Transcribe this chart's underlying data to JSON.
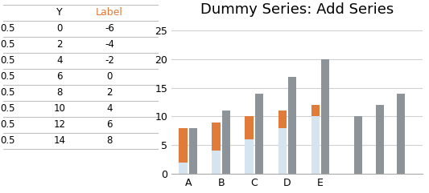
{
  "title": "Dummy Series: Add Series",
  "categories": [
    "A",
    "B",
    "C",
    "D",
    "E"
  ],
  "blue_base": [
    2,
    4,
    6,
    8,
    10
  ],
  "orange_top": [
    6,
    5,
    4,
    3,
    2
  ],
  "gray_bars": [
    8,
    11,
    14,
    17,
    20
  ],
  "extra_gray": [
    10,
    12,
    14
  ],
  "blue_color": "#d6e4f0",
  "orange_color": "#e07b39",
  "gray_color": "#8d9499",
  "ylim": [
    0,
    27
  ],
  "yticks": [
    0,
    5,
    10,
    15,
    20,
    25
  ],
  "title_fontsize": 13,
  "bar_width": 0.25,
  "table_col1_header": "Y",
  "table_col2_header": "Label",
  "table_x_vals": [
    0.5,
    0.5,
    0.5,
    0.5,
    0.5,
    0.5,
    0.5,
    0.5
  ],
  "table_y_vals": [
    0,
    2,
    4,
    6,
    8,
    10,
    12,
    14
  ],
  "table_label_vals": [
    -6,
    -4,
    -2,
    0,
    2,
    4,
    6,
    8
  ],
  "background_color": "#ffffff",
  "grid_color": "#d0d0d0",
  "header_orange": "#e07b39",
  "table_border_color": "#c0c0c0"
}
